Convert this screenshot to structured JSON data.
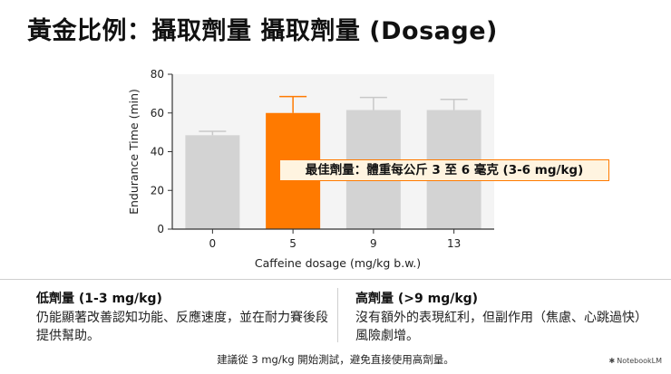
{
  "slide": {
    "title": "黃金比例：攝取劑量 攝取劑量 (Dosage)",
    "callout": "最佳劑量：體重每公斤 3 至 6 毫克 (3-6 mg/kg)",
    "left_panel": {
      "title": "低劑量 (1-3 mg/kg)",
      "body": "仍能顯著改善認知功能、反應速度，並在耐力賽後段提供幫助。"
    },
    "right_panel": {
      "title": "高劑量 (>9 mg/kg)",
      "body": "沒有額外的表現紅利，但副作用（焦慮、心跳過快）風險劇增。"
    },
    "footer": "建議從 3 mg/kg 開始測試，避免直接使用高劑量。",
    "brand": "NotebookLM",
    "brand_icon": "notebooklm-logo-icon"
  },
  "chart_data": {
    "type": "bar",
    "categories": [
      "0",
      "5",
      "9",
      "13"
    ],
    "values": [
      48.5,
      60,
      61.5,
      61.5
    ],
    "error_upper": [
      50.5,
      68.5,
      68,
      67
    ],
    "highlight_index": 1,
    "colors": {
      "default": "#d3d3d3",
      "highlight": "#ff7a00",
      "error_default": "#c8c8c8",
      "error_highlight": "#ff7a00"
    },
    "xlabel": "Caffeine dosage (mg/kg b.w.)",
    "ylabel": "Endurance Time (min)",
    "yticks": [
      0,
      20,
      40,
      60,
      80
    ],
    "ylim": [
      0,
      80
    ],
    "grid": false
  }
}
